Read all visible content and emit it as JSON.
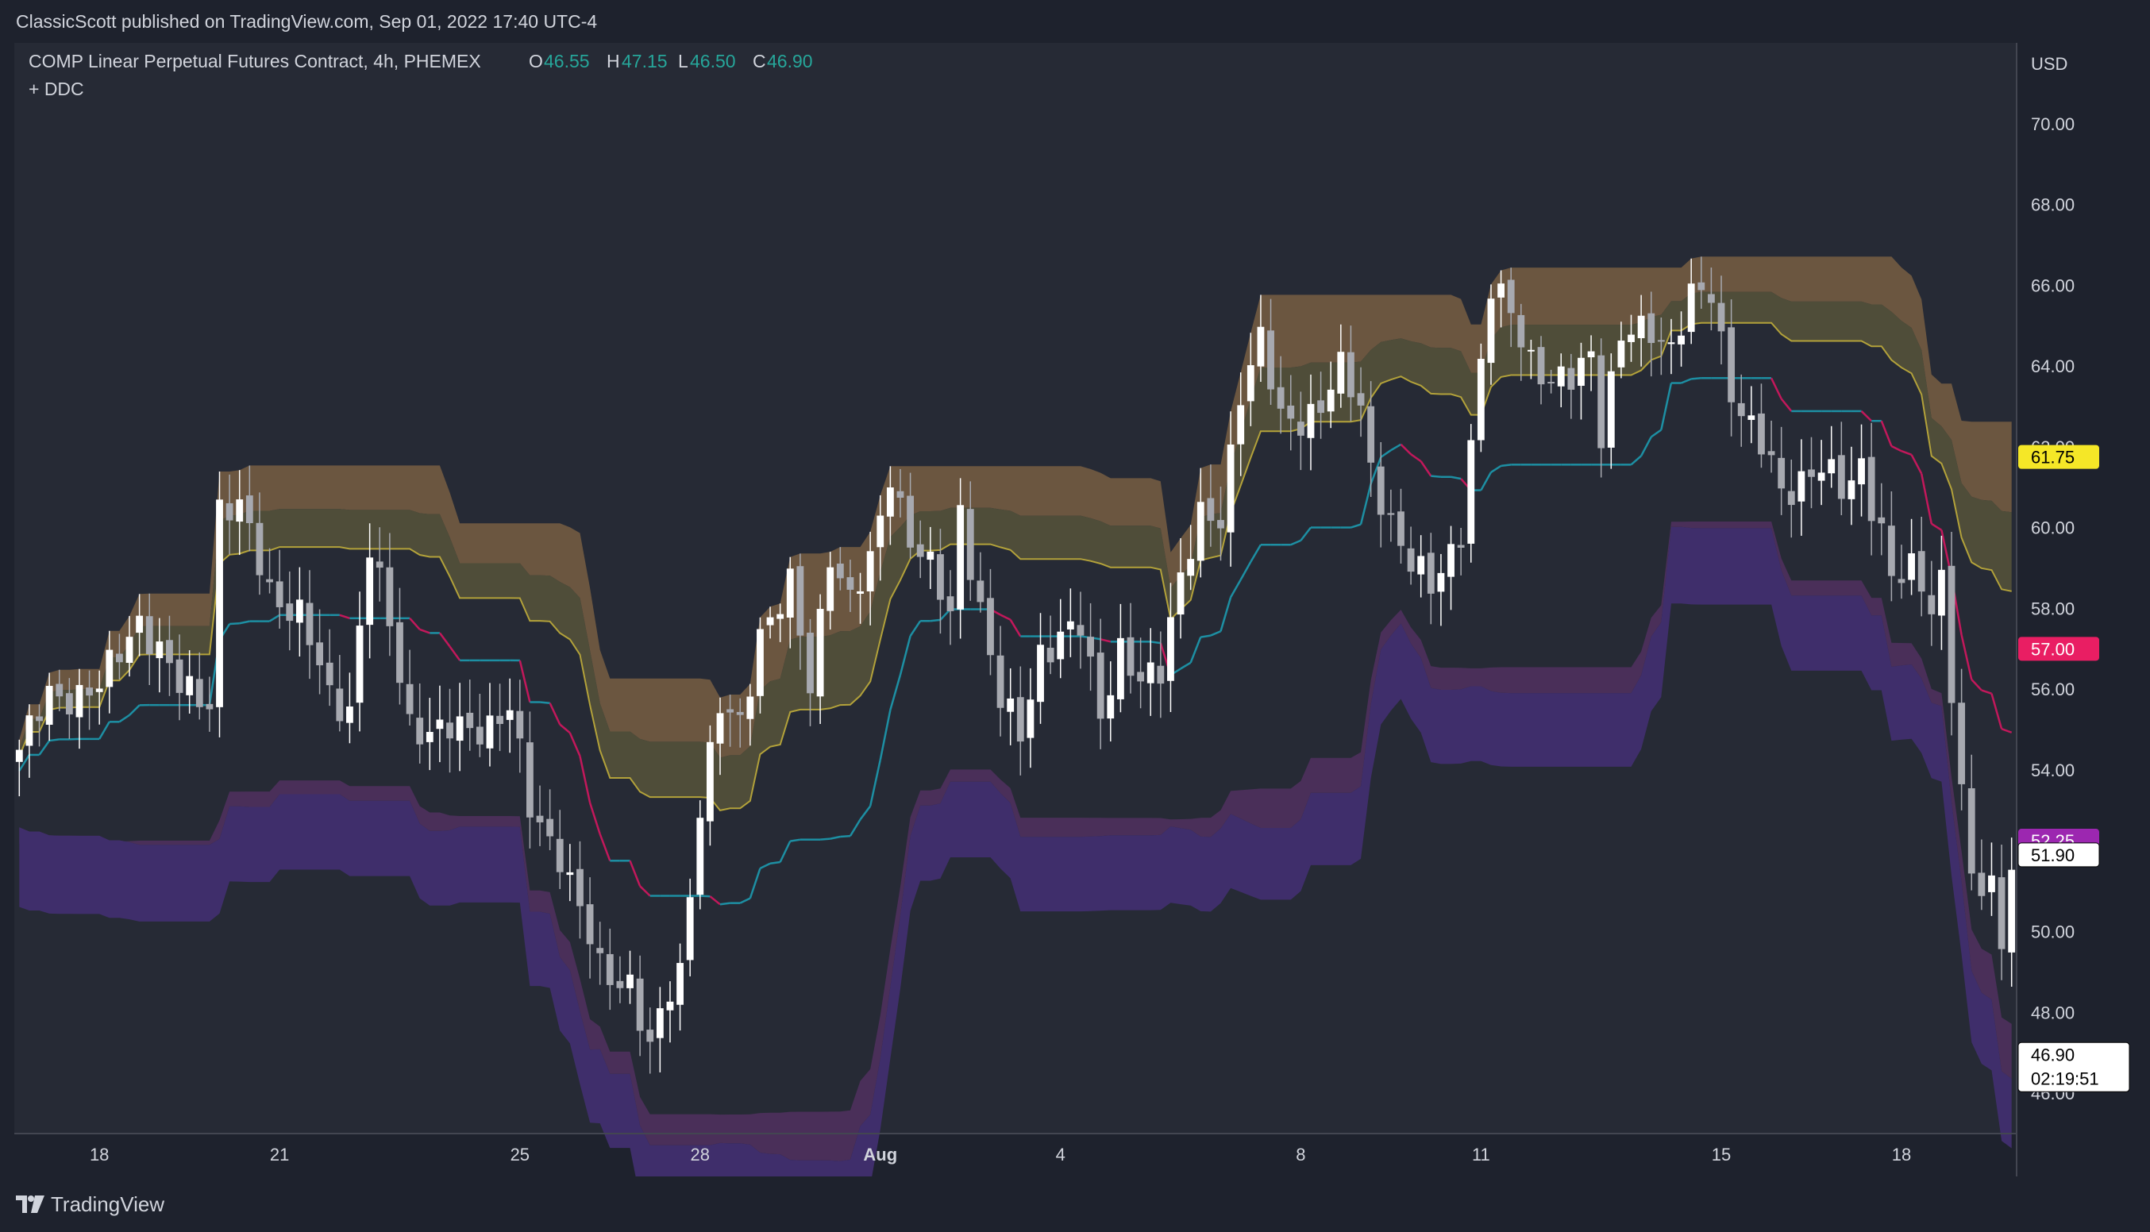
{
  "header": {
    "published": "ClassicScott published on TradingView.com, Sep 01, 2022 17:40 UTC-4"
  },
  "legend": {
    "symbol": "COMP Linear Perpetual Futures Contract, 4h, PHEMEX",
    "o_label": "O",
    "o_value": "46.55",
    "h_label": "H",
    "h_value": "47.15",
    "l_label": "L",
    "l_value": "46.50",
    "c_label": "C",
    "c_value": "46.90",
    "indicator": "+ DDC"
  },
  "footer": {
    "brand": "TradingView"
  },
  "colors": {
    "background": "#1e222d",
    "plot_bg": "#262a35",
    "up": "#ffffff",
    "down": "#a7a9b0",
    "upper_outer": "#6b5640",
    "upper_inner": "#4f4d39",
    "upper_edge": "#b3a23a",
    "lower_inner": "#4a2f59",
    "lower_outer": "#3f2e6b",
    "basis_up": "#1d8fa3",
    "basis_down": "#c2185b",
    "legend_value": "#26a69a"
  },
  "chart_data": {
    "type": "candlestick",
    "timeframe": "4h",
    "currency": "USD",
    "ylim": [
      45,
      72
    ],
    "y_ticks": [
      "70.00",
      "68.00",
      "66.00",
      "64.00",
      "62.00",
      "60.00",
      "58.00",
      "56.00",
      "54.00",
      "52.00",
      "50.00",
      "48.00",
      "46.00"
    ],
    "x_ticks": [
      {
        "label": "18",
        "bar": 8
      },
      {
        "label": "21",
        "bar": 26
      },
      {
        "label": "25",
        "bar": 50
      },
      {
        "label": "28",
        "bar": 68
      },
      {
        "label": "Aug",
        "bar": 86
      },
      {
        "label": "4",
        "bar": 104
      },
      {
        "label": "8",
        "bar": 128
      },
      {
        "label": "11",
        "bar": 146
      },
      {
        "label": "15",
        "bar": 170
      },
      {
        "label": "18",
        "bar": 188
      }
    ],
    "price_labels": [
      {
        "value": 61.75,
        "text": "61.75",
        "color": "#f5e727",
        "text_color": "#000000"
      },
      {
        "value": 57.0,
        "text": "57.00",
        "color": "#e91e63",
        "text_color": "#ffffff"
      },
      {
        "value": 52.25,
        "text": "52.25",
        "color": "#9c27b0",
        "text_color": "#ffffff"
      },
      {
        "value": 51.9,
        "text": "51.90",
        "color": "#ffffff",
        "text_color": "#000000"
      },
      {
        "value": 46.9,
        "text": "46.90",
        "sub": "02:19:51",
        "color": "#ffffff",
        "text_color": "#000000"
      }
    ],
    "bars_per_side_note": "none",
    "bar_count": 200,
    "anchors": [
      [
        0,
        54.5
      ],
      [
        3,
        55.8
      ],
      [
        8,
        56.0
      ],
      [
        12,
        57.8
      ],
      [
        16,
        56.0
      ],
      [
        19,
        55.8
      ],
      [
        20,
        60.5
      ],
      [
        22,
        60.4
      ],
      [
        25,
        58.5
      ],
      [
        28,
        57.8
      ],
      [
        31,
        55.8
      ],
      [
        33,
        55.6
      ],
      [
        35,
        59.5
      ],
      [
        37,
        57.5
      ],
      [
        39,
        55.2
      ],
      [
        42,
        54.9
      ],
      [
        45,
        55.0
      ],
      [
        47,
        55.2
      ],
      [
        49,
        55.5
      ],
      [
        51,
        53.0
      ],
      [
        54,
        52.0
      ],
      [
        56,
        50.5
      ],
      [
        58,
        49.0
      ],
      [
        61,
        48.8
      ],
      [
        63,
        47.0
      ],
      [
        65,
        48.5
      ],
      [
        66,
        49.0
      ],
      [
        68,
        53.2
      ],
      [
        70,
        55.5
      ],
      [
        72,
        55.0
      ],
      [
        74,
        57.5
      ],
      [
        77,
        58.5
      ],
      [
        79,
        56.0
      ],
      [
        81,
        59.5
      ],
      [
        83,
        58.2
      ],
      [
        85,
        59.0
      ],
      [
        87,
        61.4
      ],
      [
        89,
        59.8
      ],
      [
        91,
        58.9
      ],
      [
        93,
        57.8
      ],
      [
        94,
        60.5
      ],
      [
        96,
        58.0
      ],
      [
        98,
        55.6
      ],
      [
        100,
        54.9
      ],
      [
        102,
        57.0
      ],
      [
        104,
        57.2
      ],
      [
        106,
        57.5
      ],
      [
        108,
        55.5
      ],
      [
        110,
        57.0
      ],
      [
        112,
        56.0
      ],
      [
        114,
        56.5
      ],
      [
        116,
        59.0
      ],
      [
        118,
        60.2
      ],
      [
        120,
        60.0
      ],
      [
        122,
        63.5
      ],
      [
        124,
        64.8
      ],
      [
        126,
        62.5
      ],
      [
        128,
        62.6
      ],
      [
        130,
        63.2
      ],
      [
        132,
        63.9
      ],
      [
        134,
        62.8
      ],
      [
        135,
        61.5
      ],
      [
        137,
        60.2
      ],
      [
        139,
        59.0
      ],
      [
        141,
        58.5
      ],
      [
        143,
        59.5
      ],
      [
        144,
        60.0
      ],
      [
        145,
        62.0
      ],
      [
        147,
        65.8
      ],
      [
        149,
        65.5
      ],
      [
        151,
        64.2
      ],
      [
        153,
        63.4
      ],
      [
        155,
        63.7
      ],
      [
        157,
        64.5
      ],
      [
        158,
        62.4
      ],
      [
        160,
        64.6
      ],
      [
        163,
        65.0
      ],
      [
        165,
        64.5
      ],
      [
        167,
        65.6
      ],
      [
        169,
        65.8
      ],
      [
        171,
        63.5
      ],
      [
        173,
        62.4
      ],
      [
        175,
        61.5
      ],
      [
        176,
        60.8
      ],
      [
        178,
        61.3
      ],
      [
        180,
        61.5
      ],
      [
        182,
        60.8
      ],
      [
        184,
        61.6
      ],
      [
        185,
        60.7
      ],
      [
        186,
        60.0
      ],
      [
        187,
        58.6
      ],
      [
        189,
        58.9
      ],
      [
        191,
        58.2
      ],
      [
        192,
        58.8
      ],
      [
        193,
        56.0
      ],
      [
        195,
        51.0
      ],
      [
        197,
        51.2
      ],
      [
        198,
        49.7
      ],
      [
        199,
        52.0
      ]
    ],
    "series": [
      {
        "name": "DDC upper outer",
        "values_from": "anchors"
      },
      {
        "name": "DDC upper inner"
      },
      {
        "name": "DDC basis"
      },
      {
        "name": "DDC lower inner"
      },
      {
        "name": "DDC lower outer"
      }
    ]
  }
}
